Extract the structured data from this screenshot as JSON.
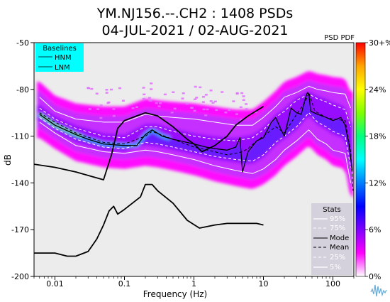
{
  "chart_data": {
    "type": "heatmap",
    "title_line1": "YM.NJ156.--.CH2 : 1408 PSDs",
    "title_line2": "04-JUL-2021 / 02-AUG-2021",
    "xlabel": "Frequency (Hz)",
    "ylabel": "dB",
    "x_scale": "log",
    "xlim": [
      0.005,
      200
    ],
    "ylim": [
      -200,
      -50
    ],
    "x_ticks": [
      {
        "value": 0.01,
        "label": "0.01"
      },
      {
        "value": 0.1,
        "label": "0.1"
      },
      {
        "value": 1,
        "label": "1"
      },
      {
        "value": 10,
        "label": "10"
      },
      {
        "value": 100,
        "label": "100"
      }
    ],
    "y_ticks": [
      {
        "value": -50,
        "label": "-50"
      },
      {
        "value": -80,
        "label": "-80"
      },
      {
        "value": -110,
        "label": "-110"
      },
      {
        "value": -140,
        "label": "-140"
      },
      {
        "value": -170,
        "label": "-170"
      },
      {
        "value": -200,
        "label": "-200"
      }
    ],
    "colorbar": {
      "title": "PSD PDF",
      "ticks": [
        "30+%",
        "24%",
        "18%",
        "12%",
        "6%",
        "0%"
      ],
      "colors": [
        "#ff0000",
        "#ffa500",
        "#ffff00",
        "#7fff00",
        "#00ff7f",
        "#00ffff",
        "#007fff",
        "#0000ff",
        "#7f00ff",
        "#ff00ff",
        "#ffffff"
      ]
    },
    "baselines_legend": {
      "title": "Baselines",
      "items": [
        "HNM",
        "LNM"
      ]
    },
    "stats_legend": {
      "title": "Stats",
      "items": [
        "95%",
        "75%",
        "Mode",
        "Mean",
        "25%",
        "5%"
      ]
    },
    "series": [
      {
        "name": "HNM",
        "points": [
          [
            0.005,
            -128
          ],
          [
            0.01,
            -130
          ],
          [
            0.02,
            -133
          ],
          [
            0.05,
            -138
          ],
          [
            0.065,
            -122
          ],
          [
            0.08,
            -105
          ],
          [
            0.1,
            -100
          ],
          [
            0.15,
            -97
          ],
          [
            0.2,
            -95
          ],
          [
            0.3,
            -97
          ],
          [
            0.5,
            -104
          ],
          [
            0.8,
            -112
          ],
          [
            1.0,
            -115
          ],
          [
            1.3,
            -120
          ],
          [
            2,
            -116
          ],
          [
            3,
            -110
          ],
          [
            4,
            -103
          ],
          [
            6,
            -97
          ],
          [
            10,
            -91
          ]
        ]
      },
      {
        "name": "LNM",
        "points": [
          [
            0.005,
            -185
          ],
          [
            0.01,
            -185
          ],
          [
            0.015,
            -187
          ],
          [
            0.02,
            -187
          ],
          [
            0.03,
            -184
          ],
          [
            0.04,
            -176
          ],
          [
            0.05,
            -167
          ],
          [
            0.06,
            -158
          ],
          [
            0.07,
            -155
          ],
          [
            0.08,
            -160
          ],
          [
            0.1,
            -157
          ],
          [
            0.13,
            -153
          ],
          [
            0.17,
            -149
          ],
          [
            0.2,
            -141
          ],
          [
            0.25,
            -141
          ],
          [
            0.3,
            -145
          ],
          [
            0.5,
            -153
          ],
          [
            0.8,
            -164
          ],
          [
            1.2,
            -169
          ],
          [
            2,
            -167
          ],
          [
            3,
            -166
          ],
          [
            5,
            -166
          ],
          [
            8,
            -166
          ],
          [
            10,
            -167
          ]
        ]
      },
      {
        "name": "Mode",
        "points": [
          [
            0.006,
            -96
          ],
          [
            0.01,
            -103
          ],
          [
            0.02,
            -109
          ],
          [
            0.03,
            -112
          ],
          [
            0.05,
            -115
          ],
          [
            0.1,
            -116
          ],
          [
            0.15,
            -116
          ],
          [
            0.2,
            -109
          ],
          [
            0.25,
            -106
          ],
          [
            0.35,
            -110
          ],
          [
            0.5,
            -112
          ],
          [
            1,
            -115
          ],
          [
            1.5,
            -117
          ],
          [
            2,
            -118
          ],
          [
            3,
            -119
          ],
          [
            4,
            -117
          ],
          [
            4.6,
            -111
          ],
          [
            5,
            -133
          ],
          [
            6,
            -120
          ],
          [
            8,
            -113
          ],
          [
            10,
            -111
          ],
          [
            13,
            -101
          ],
          [
            15,
            -98
          ],
          [
            18,
            -106
          ],
          [
            20,
            -110
          ],
          [
            25,
            -92
          ],
          [
            30,
            -95
          ],
          [
            35,
            -96
          ],
          [
            40,
            -86
          ],
          [
            43,
            -82
          ],
          [
            45,
            -83
          ],
          [
            48,
            -94
          ],
          [
            60,
            -96
          ],
          [
            80,
            -98
          ],
          [
            100,
            -100
          ],
          [
            130,
            -98
          ],
          [
            150,
            -103
          ],
          [
            170,
            -115
          ],
          [
            190,
            -132
          ]
        ]
      },
      {
        "name": "Mean",
        "points": [
          [
            0.006,
            -95
          ],
          [
            0.01,
            -101
          ],
          [
            0.02,
            -108
          ],
          [
            0.05,
            -114
          ],
          [
            0.1,
            -115
          ],
          [
            0.2,
            -110
          ],
          [
            0.25,
            -107
          ],
          [
            0.5,
            -112
          ],
          [
            1,
            -117
          ],
          [
            2,
            -120
          ],
          [
            3,
            -122
          ],
          [
            4,
            -121
          ],
          [
            5,
            -120
          ],
          [
            6,
            -118
          ],
          [
            8,
            -113
          ],
          [
            10,
            -110
          ],
          [
            15,
            -104
          ],
          [
            20,
            -108
          ],
          [
            30,
            -96
          ],
          [
            40,
            -88
          ],
          [
            45,
            -82
          ],
          [
            55,
            -94
          ],
          [
            80,
            -98
          ],
          [
            100,
            -99
          ],
          [
            150,
            -100
          ],
          [
            180,
            -120
          ],
          [
            195,
            -145
          ]
        ]
      },
      {
        "name": "95%",
        "points": [
          [
            0.006,
            -85
          ],
          [
            0.01,
            -94
          ],
          [
            0.02,
            -99
          ],
          [
            0.05,
            -101
          ],
          [
            0.1,
            -101
          ],
          [
            0.2,
            -96
          ],
          [
            0.3,
            -97
          ],
          [
            0.5,
            -98
          ],
          [
            1,
            -99
          ],
          [
            2,
            -101
          ],
          [
            4,
            -103
          ],
          [
            7,
            -103
          ],
          [
            10,
            -98
          ],
          [
            15,
            -91
          ],
          [
            20,
            -85
          ],
          [
            30,
            -82
          ],
          [
            45,
            -78
          ],
          [
            60,
            -80
          ],
          [
            80,
            -81
          ],
          [
            100,
            -82
          ],
          [
            150,
            -83
          ],
          [
            180,
            -92
          ]
        ]
      },
      {
        "name": "75%",
        "points": [
          [
            0.006,
            -92
          ],
          [
            0.01,
            -99
          ],
          [
            0.02,
            -105
          ],
          [
            0.05,
            -110
          ],
          [
            0.1,
            -111
          ],
          [
            0.2,
            -104
          ],
          [
            0.3,
            -104
          ],
          [
            0.5,
            -107
          ],
          [
            1,
            -110
          ],
          [
            2,
            -112
          ],
          [
            4,
            -113
          ],
          [
            7,
            -111
          ],
          [
            10,
            -106
          ],
          [
            15,
            -98
          ],
          [
            20,
            -94
          ],
          [
            30,
            -87
          ],
          [
            45,
            -83
          ],
          [
            60,
            -86
          ],
          [
            80,
            -88
          ],
          [
            100,
            -90
          ],
          [
            150,
            -93
          ],
          [
            180,
            -104
          ]
        ]
      },
      {
        "name": "25%",
        "points": [
          [
            0.006,
            -98
          ],
          [
            0.01,
            -105
          ],
          [
            0.02,
            -112
          ],
          [
            0.05,
            -117
          ],
          [
            0.1,
            -118
          ],
          [
            0.2,
            -114
          ],
          [
            0.3,
            -115
          ],
          [
            0.5,
            -117
          ],
          [
            1,
            -120
          ],
          [
            2,
            -123
          ],
          [
            4,
            -125
          ],
          [
            7,
            -126
          ],
          [
            10,
            -122
          ],
          [
            15,
            -114
          ],
          [
            20,
            -110
          ],
          [
            30,
            -104
          ],
          [
            45,
            -95
          ],
          [
            60,
            -101
          ],
          [
            80,
            -104
          ],
          [
            100,
            -107
          ],
          [
            150,
            -110
          ],
          [
            180,
            -130
          ]
        ]
      },
      {
        "name": "5%",
        "points": [
          [
            0.006,
            -101
          ],
          [
            0.01,
            -108
          ],
          [
            0.02,
            -116
          ],
          [
            0.05,
            -120
          ],
          [
            0.1,
            -121
          ],
          [
            0.2,
            -119
          ],
          [
            0.3,
            -120
          ],
          [
            0.5,
            -122
          ],
          [
            1,
            -125
          ],
          [
            2,
            -129
          ],
          [
            4,
            -132
          ],
          [
            7,
            -134
          ],
          [
            10,
            -131
          ],
          [
            15,
            -125
          ],
          [
            20,
            -119
          ],
          [
            30,
            -113
          ],
          [
            45,
            -106
          ],
          [
            60,
            -112
          ],
          [
            80,
            -115
          ],
          [
            100,
            -119
          ],
          [
            150,
            -121
          ],
          [
            180,
            -140
          ]
        ]
      }
    ]
  }
}
